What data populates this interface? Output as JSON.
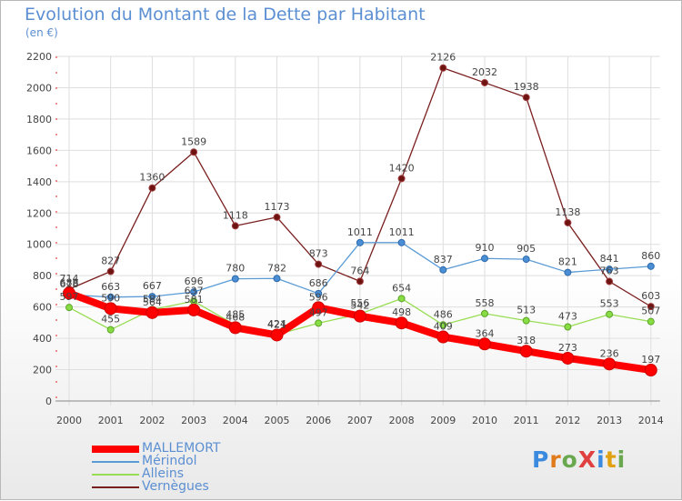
{
  "title": "Evolution du Montant de la Dette par Habitant",
  "subtitle": "(en €)",
  "logo": "ProXiti",
  "chart_data": {
    "type": "line",
    "ylim": [
      0,
      2200
    ],
    "yticks": [
      0,
      200,
      400,
      600,
      800,
      1000,
      1200,
      1400,
      1600,
      1800,
      2000,
      2200
    ],
    "x": [
      "2000",
      "2001",
      "2002",
      "2003",
      "2004",
      "2005",
      "2006",
      "2007",
      "2008",
      "2009",
      "2010",
      "2011",
      "2012",
      "2013",
      "2014"
    ],
    "grid": true,
    "series": [
      {
        "name": "Vernègues",
        "color": "#7a1f1f",
        "values": [
          714,
          827,
          1360,
          1589,
          1118,
          1173,
          873,
          764,
          1420,
          2126,
          2032,
          1938,
          1138,
          763,
          603
        ]
      },
      {
        "name": "Alleins",
        "color": "#99dd55",
        "values": [
          597,
          455,
          584,
          637,
          485,
          424,
          497,
          556,
          654,
          486,
          558,
          513,
          473,
          553,
          507
        ]
      },
      {
        "name": "Mérindol",
        "color": "#5b9bd5",
        "values": [
          678,
          663,
          667,
          696,
          780,
          782,
          686,
          1011,
          1011,
          837,
          910,
          905,
          821,
          841,
          860
        ]
      },
      {
        "name": "MALLEMORT",
        "color": "#ff0000",
        "values": [
          688,
          590,
          564,
          581,
          468,
          421,
          596,
          542,
          498,
          409,
          364,
          318,
          273,
          236,
          197
        ]
      }
    ]
  }
}
